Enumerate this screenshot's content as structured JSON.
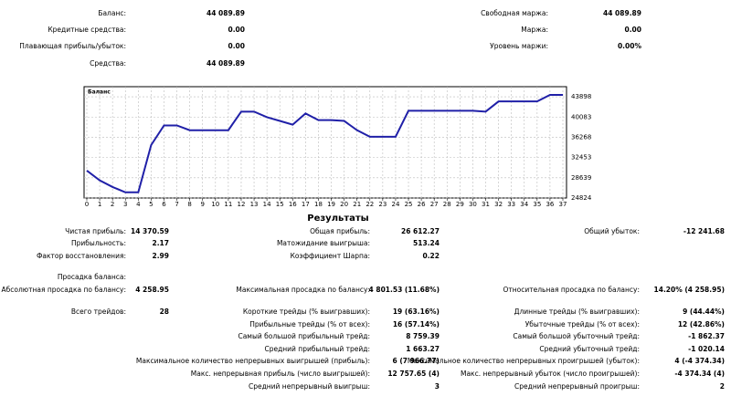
{
  "account": {
    "left": [
      {
        "label": "Баланс:",
        "value": "44 089.89"
      },
      {
        "label": "Кредитные средства:",
        "value": "0.00"
      },
      {
        "label": "Плавающая прибыль/убыток:",
        "value": "0.00"
      },
      {
        "label": "Средства:",
        "value": "44 089.89"
      }
    ],
    "right": [
      {
        "label": "Свободная маржа:",
        "value": "44 089.89"
      },
      {
        "label": "Маржа:",
        "value": "0.00"
      },
      {
        "label": "Уровень маржи:",
        "value": "0.00%"
      }
    ]
  },
  "chart_data": {
    "type": "line",
    "title": "Баланс",
    "color": "#2020a8",
    "grid": true,
    "x": [
      0,
      1,
      2,
      3,
      4,
      5,
      6,
      7,
      8,
      9,
      10,
      11,
      12,
      13,
      14,
      15,
      16,
      17,
      18,
      19,
      20,
      21,
      22,
      23,
      24,
      25,
      26,
      27,
      28,
      29,
      30,
      31,
      32,
      33,
      34,
      35,
      36,
      37
    ],
    "values": [
      30000,
      28150,
      26900,
      25900,
      25900,
      34800,
      38500,
      38500,
      37600,
      37600,
      37600,
      37600,
      41100,
      41100,
      40050,
      39350,
      38650,
      40750,
      39500,
      39500,
      39350,
      37600,
      36370,
      36370,
      36370,
      41270,
      41270,
      41270,
      41270,
      41270,
      41270,
      41100,
      43020,
      43020,
      43020,
      43020,
      44250,
      44250
    ],
    "xlim": [
      0,
      37
    ],
    "xticks": [
      0,
      1,
      2,
      3,
      4,
      5,
      6,
      7,
      8,
      9,
      10,
      11,
      12,
      13,
      14,
      15,
      16,
      17,
      18,
      19,
      20,
      21,
      22,
      23,
      24,
      25,
      26,
      27,
      28,
      29,
      30,
      31,
      32,
      33,
      34,
      35,
      36,
      37
    ],
    "ylim": [
      24824,
      45800
    ],
    "yticks": [
      24824,
      28639,
      32453,
      36268,
      40083,
      43898
    ]
  },
  "results": {
    "title": "Результаты",
    "rows": [
      {
        "left": {
          "label": "Чистая прибыль:",
          "value": "14 370.59"
        },
        "mid": {
          "label": "Общая прибыль:",
          "value": "26 612.27"
        },
        "right": {
          "label": "Общий убыток:",
          "value": "-12 241.68"
        }
      },
      {
        "left": {
          "label": "Прибыльность:",
          "value": "2.17"
        },
        "mid": {
          "label": "Матожидание выигрыша:",
          "value": "513.24"
        }
      },
      {
        "left": {
          "label": "Фактор восстановления:",
          "value": "2.99"
        },
        "mid": {
          "label": "Коэффициент Шарпа:",
          "value": "0.22"
        }
      },
      {
        "left": {
          "label": "Просадка баланса:"
        }
      },
      {
        "left": {
          "label": "Абсолютная просадка по балансу:",
          "value": "4 258.95"
        },
        "mid": {
          "label": "Максимальная просадка по балансу:",
          "value": "4 801.53 (11.68%)"
        },
        "right": {
          "label": "Относительная просадка по балансу:",
          "value": "14.20% (4 258.95)"
        }
      },
      {
        "left": {
          "label": "Всего трейдов:",
          "value": "28"
        },
        "mid": {
          "label": "Короткие трейды (% выигравших):",
          "value": "19 (63.16%)"
        },
        "right": {
          "label": "Длинные трейды (% выигравших):",
          "value": "9 (44.44%)"
        }
      },
      {
        "mid": {
          "label": "Прибыльные трейды (% от всех):",
          "value": "16 (57.14%)"
        },
        "right": {
          "label": "Убыточные трейды (% от всех):",
          "value": "12 (42.86%)"
        }
      },
      {
        "mid": {
          "label": "Самый большой прибыльный трейд:",
          "value": "8 759.39"
        },
        "right": {
          "label": "Самый большой убыточный трейд:",
          "value": "-1 862.37"
        }
      },
      {
        "mid": {
          "label": "Средний прибыльный трейд:",
          "value": "1 663.27"
        },
        "right": {
          "label": "Средний убыточный трейд:",
          "value": "-1 020.14"
        }
      },
      {
        "mid": {
          "label": "Максимальное количество непрерывных выигрышей (прибыль):",
          "value": "6 (7 966.77)"
        },
        "right": {
          "label": "Максимальное количество непрерывных проигрышей (убыток):",
          "value": "4 (-4 374.34)"
        }
      },
      {
        "mid": {
          "label": "Макс. непрерывная прибыль (число выигрышей):",
          "value": "12 757.65 (4)"
        },
        "right": {
          "label": "Макс. непрерывный убыток (число проигрышей):",
          "value": "-4 374.34 (4)"
        }
      },
      {
        "mid": {
          "label": "Средний непрерывный выигрыш:",
          "value": "3"
        },
        "right": {
          "label": "Средний непрерывный проигрыш:",
          "value": "2"
        }
      }
    ]
  }
}
